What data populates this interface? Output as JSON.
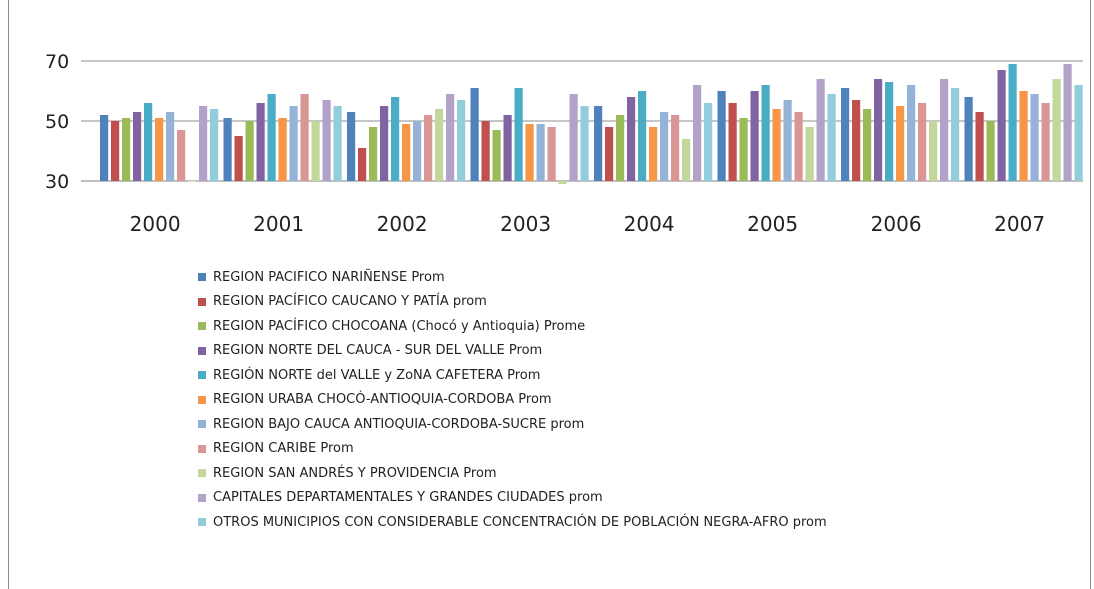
{
  "chart_data": {
    "type": "bar",
    "title": "",
    "categories": [
      "2000",
      "2001",
      "2002",
      "2003",
      "2004",
      "2005",
      "2006",
      "2007"
    ],
    "ylim": [
      30,
      75
    ],
    "yticks": [
      30,
      50,
      70
    ],
    "grid": true,
    "legend_position": "bottom",
    "series": [
      {
        "name": "REGION PACIFICO NARIÑENSE Prom",
        "color": "#4f81bd",
        "values": [
          52,
          51,
          53,
          61,
          55,
          60,
          61,
          58
        ]
      },
      {
        "name": "REGION PACÍFICO CAUCANO Y PATÍA prom",
        "color": "#c0504d",
        "values": [
          50,
          45,
          41,
          50,
          48,
          56,
          57,
          53
        ]
      },
      {
        "name": "REGION PACÍFICO CHOCOANA (Chocó y Antioquia) Prome",
        "color": "#9bbb59",
        "values": [
          51,
          50,
          48,
          47,
          52,
          51,
          54,
          50
        ]
      },
      {
        "name": "REGION NORTE DEL CAUCA - SUR DEL VALLE Prom",
        "color": "#8064a2",
        "values": [
          53,
          56,
          55,
          52,
          58,
          60,
          64,
          67
        ]
      },
      {
        "name": "REGIÓN NORTE del VALLE y ZoNA CAFETERA Prom",
        "color": "#4bacc6",
        "values": [
          56,
          59,
          58,
          61,
          60,
          62,
          63,
          69
        ]
      },
      {
        "name": "REGION URABA CHOCÓ-ANTIOQUIA-CORDOBA Prom",
        "color": "#f79646",
        "values": [
          51,
          51,
          49,
          49,
          48,
          54,
          55,
          60
        ]
      },
      {
        "name": "REGION BAJO CAUCA  ANTIOQUIA-CORDOBA-SUCRE prom",
        "color": "#95b3d7",
        "values": [
          53,
          55,
          50,
          49,
          53,
          57,
          62,
          59
        ]
      },
      {
        "name": "REGION CARIBE Prom",
        "color": "#d99694",
        "values": [
          47,
          59,
          52,
          48,
          52,
          53,
          56,
          56
        ]
      },
      {
        "name": "REGION SAN ANDRÉS Y PROVIDENCIA Prom",
        "color": "#c3d69b",
        "values": [
          30,
          50,
          54,
          29,
          44,
          48,
          50,
          64
        ]
      },
      {
        "name": "CAPITALES DEPARTAMENTALES Y GRANDES CIUDADES prom",
        "color": "#b2a2c7",
        "values": [
          55,
          57,
          59,
          59,
          62,
          64,
          64,
          69
        ]
      },
      {
        "name": "OTROS MUNICIPIOS CON CONSIDERABLE CONCENTRACIÓN DE POBLACIÓN NEGRA-AFRO prom",
        "color": "#92cddc",
        "values": [
          54,
          55,
          57,
          55,
          56,
          59,
          61,
          62
        ]
      }
    ]
  }
}
